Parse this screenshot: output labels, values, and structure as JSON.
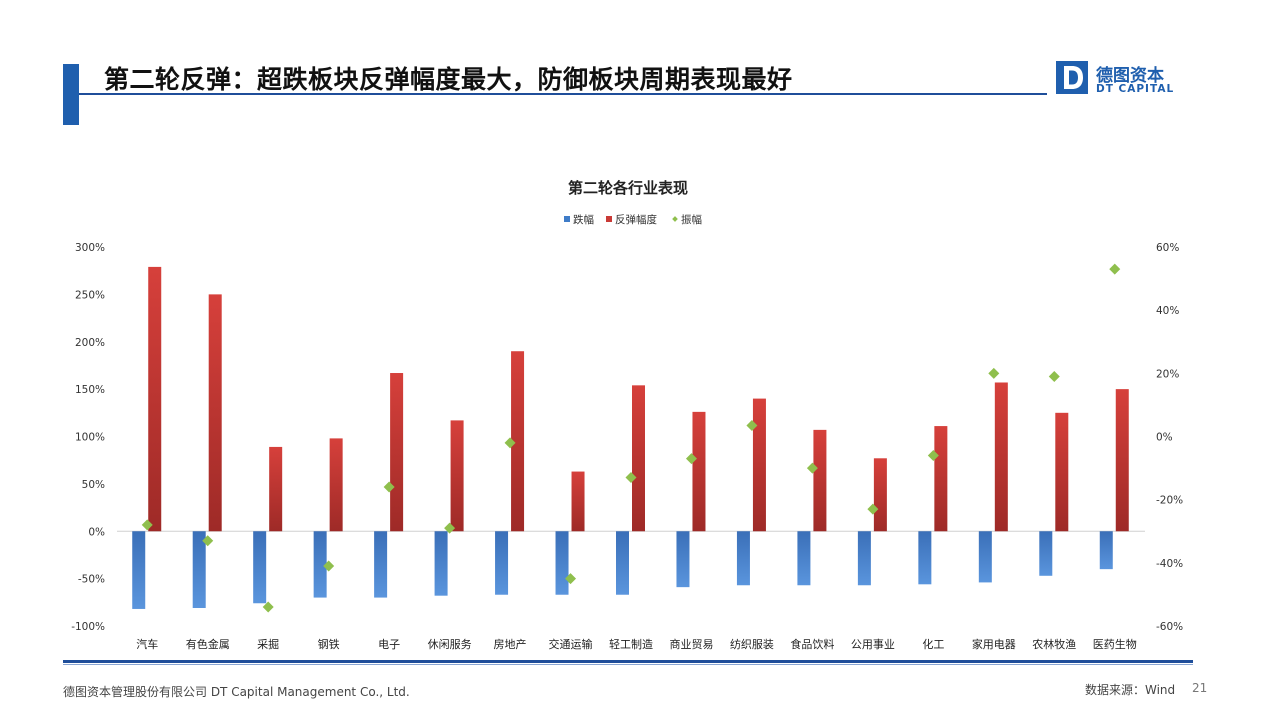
{
  "slide": {
    "title": "第二轮反弹：超跌板块反弹幅度最大，防御板块周期表现最好",
    "page_number": "21"
  },
  "logo": {
    "name_cn": "德图资本",
    "name_en": "DT CAPITAL",
    "mark_letter": "D",
    "color": "#1f5fae"
  },
  "footer": {
    "company": "德图资本管理股份有限公司 DT Capital Management Co., Ltd.",
    "source": "数据来源：Wind"
  },
  "colors": {
    "accent": "#1f5fae",
    "fall": "#3f7cc8",
    "rebound": "#c93a36",
    "amplitude": "#8fbf4d"
  },
  "chart_data": {
    "type": "bar",
    "title": "第二轮各行业表现",
    "legend_position": "top",
    "grid": false,
    "categories": [
      "汽车",
      "有色金属",
      "采掘",
      "钢铁",
      "电子",
      "休闲服务",
      "房地产",
      "交通运输",
      "轻工制造",
      "商业贸易",
      "纺织服装",
      "食品饮料",
      "公用事业",
      "化工",
      "家用电器",
      "农林牧渔",
      "医药生物"
    ],
    "y_left": {
      "min": -100,
      "max": 300,
      "step": 50,
      "ticks": [
        "300%",
        "250%",
        "200%",
        "150%",
        "100%",
        "50%",
        "0%",
        "-50%",
        "-100%"
      ]
    },
    "y_right": {
      "min": -60,
      "max": 60,
      "step": 20,
      "ticks": [
        "60%",
        "40%",
        "20%",
        "0%",
        "-20%",
        "-40%",
        "-60%"
      ]
    },
    "series": [
      {
        "name": "跌幅",
        "type": "bar",
        "axis": "left",
        "color": "#3f7cc8",
        "values": [
          -82,
          -81,
          -76,
          -70,
          -70,
          -68,
          -67,
          -67,
          -67,
          -59,
          -57,
          -57,
          -57,
          -56,
          -54,
          -47,
          -40
        ]
      },
      {
        "name": "反弹幅度",
        "type": "bar",
        "axis": "left",
        "color": "#c93a36",
        "values": [
          279,
          250,
          89,
          98,
          167,
          117,
          190,
          63,
          154,
          126,
          140,
          107,
          77,
          111,
          157,
          125,
          150
        ]
      },
      {
        "name": "振幅",
        "type": "scatter",
        "axis": "right",
        "color": "#8fbf4d",
        "values": [
          -28,
          -33,
          -54,
          -41,
          -16,
          -29,
          -2,
          -45,
          -13,
          -7,
          3.5,
          -10,
          -23,
          -6,
          20,
          19,
          53
        ]
      }
    ]
  }
}
